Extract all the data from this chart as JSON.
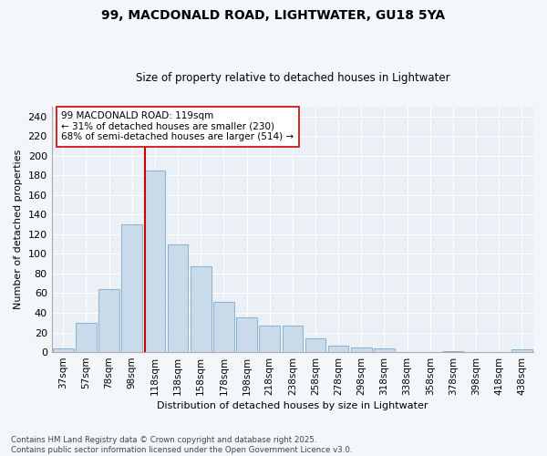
{
  "title": "99, MACDONALD ROAD, LIGHTWATER, GU18 5YA",
  "subtitle": "Size of property relative to detached houses in Lightwater",
  "xlabel": "Distribution of detached houses by size in Lightwater",
  "ylabel": "Number of detached properties",
  "bar_color": "#c9daea",
  "bar_edge_color": "#7aaac8",
  "bg_color": "#eaf0f6",
  "grid_color": "#ffffff",
  "categories": [
    "37sqm",
    "57sqm",
    "78sqm",
    "98sqm",
    "118sqm",
    "138sqm",
    "158sqm",
    "178sqm",
    "198sqm",
    "218sqm",
    "238sqm",
    "258sqm",
    "278sqm",
    "298sqm",
    "318sqm",
    "338sqm",
    "358sqm",
    "378sqm",
    "398sqm",
    "418sqm",
    "438sqm"
  ],
  "values": [
    4,
    30,
    64,
    130,
    185,
    110,
    87,
    51,
    35,
    27,
    27,
    14,
    7,
    5,
    4,
    0,
    0,
    1,
    0,
    0,
    3
  ],
  "vline_color": "#cc0000",
  "vline_index": 4,
  "annotation_line1": "99 MACDONALD ROAD: 119sqm",
  "annotation_line2": "← 31% of detached houses are smaller (230)",
  "annotation_line3": "68% of semi-detached houses are larger (514) →",
  "ylim": [
    0,
    250
  ],
  "yticks": [
    0,
    20,
    40,
    60,
    80,
    100,
    120,
    140,
    160,
    180,
    200,
    220,
    240
  ],
  "footer": "Contains HM Land Registry data © Crown copyright and database right 2025.\nContains public sector information licensed under the Open Government Licence v3.0.",
  "figsize": [
    6.0,
    5.0
  ],
  "dpi": 100
}
